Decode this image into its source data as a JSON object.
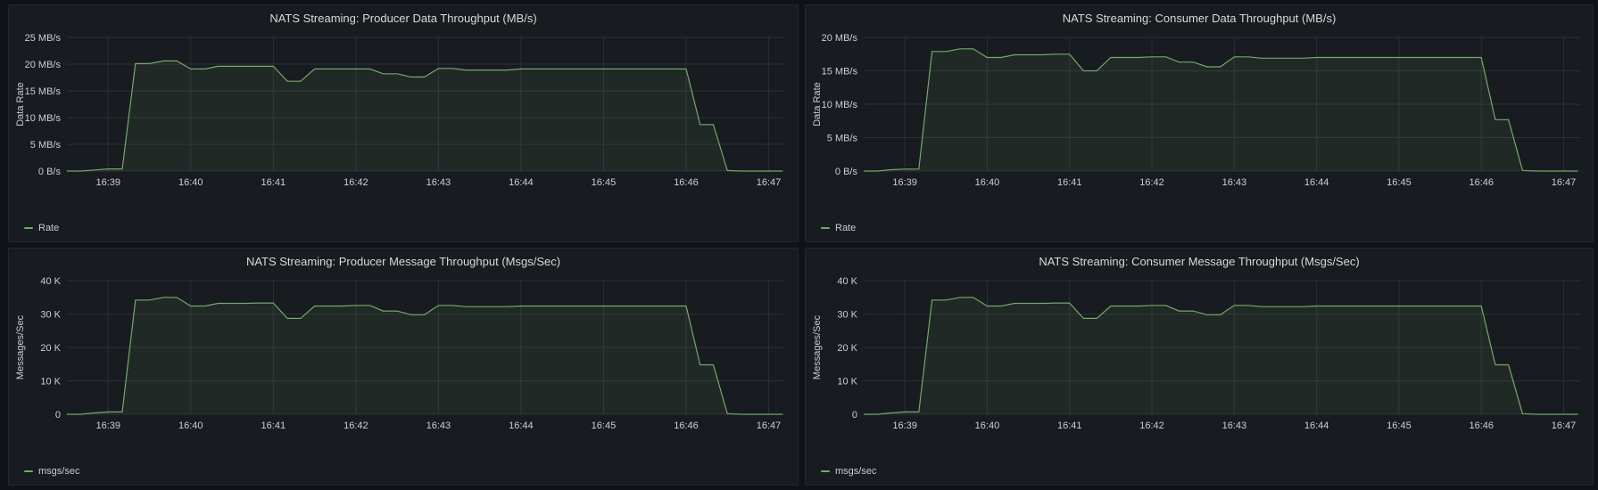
{
  "colors": {
    "series": "#73a96a",
    "grid": "#2c2f35",
    "background": "#181b1f",
    "text": "#c7d0d9"
  },
  "panels": [
    {
      "title": "NATS Streaming: Producer Data Throughput (MB/s)",
      "legend": "Rate"
    },
    {
      "title": "NATS Streaming: Consumer Data Throughput (MB/s)",
      "legend": "Rate"
    },
    {
      "title": "NATS Streaming: Producer Message Throughput (Msgs/Sec)",
      "legend": "msgs/sec"
    },
    {
      "title": "NATS Streaming: Consumer Message Throughput (Msgs/Sec)",
      "legend": "msgs/sec"
    }
  ],
  "chart_data": [
    {
      "type": "area",
      "title": "NATS Streaming: Producer Data Throughput (MB/s)",
      "ylabel": "Data Rate",
      "xlabel": "",
      "ylim": [
        0,
        25
      ],
      "x_ticks": [
        "16:39",
        "16:40",
        "16:41",
        "16:42",
        "16:43",
        "16:44",
        "16:45",
        "16:46",
        "16:47"
      ],
      "y_ticks": [
        {
          "value": 0,
          "label": "0 B/s"
        },
        {
          "value": 5,
          "label": "5 MB/s"
        },
        {
          "value": 10,
          "label": "10 MB/s"
        },
        {
          "value": 15,
          "label": "15 MB/s"
        },
        {
          "value": 20,
          "label": "20 MB/s"
        },
        {
          "value": 25,
          "label": "25 MB/s"
        }
      ],
      "grid": true,
      "legend_position": "bottom-left",
      "x_start_minute": 38.5,
      "x_end_minute": 47.2,
      "series": [
        {
          "name": "Rate",
          "x": [
            38.5,
            38.67,
            38.83,
            39.0,
            39.17,
            39.33,
            39.5,
            39.67,
            39.83,
            40.0,
            40.17,
            40.33,
            40.5,
            40.67,
            40.83,
            41.0,
            41.17,
            41.33,
            41.5,
            41.67,
            41.83,
            42.0,
            42.17,
            42.33,
            42.5,
            42.67,
            42.83,
            43.0,
            43.17,
            43.33,
            43.5,
            43.67,
            43.83,
            44.0,
            44.17,
            44.33,
            44.5,
            44.67,
            44.83,
            45.0,
            45.17,
            45.33,
            45.5,
            45.67,
            45.83,
            46.0,
            46.17,
            46.33,
            46.5,
            46.67,
            46.83,
            47.0,
            47.17
          ],
          "values": [
            0,
            0,
            0.2,
            0.4,
            0.4,
            20.1,
            20.1,
            20.6,
            20.6,
            19.1,
            19.1,
            19.6,
            19.6,
            19.6,
            19.6,
            19.6,
            16.8,
            16.8,
            19.1,
            19.1,
            19.1,
            19.1,
            19.1,
            18.2,
            18.2,
            17.6,
            17.6,
            19.2,
            19.2,
            18.9,
            18.9,
            18.9,
            18.9,
            19.1,
            19.1,
            19.1,
            19.1,
            19.1,
            19.1,
            19.1,
            19.1,
            19.1,
            19.1,
            19.1,
            19.1,
            19.1,
            8.7,
            8.7,
            0.1,
            0,
            0,
            0,
            0
          ]
        }
      ]
    },
    {
      "type": "area",
      "title": "NATS Streaming: Consumer Data Throughput (MB/s)",
      "ylabel": "Data Rate",
      "xlabel": "",
      "ylim": [
        0,
        20
      ],
      "x_ticks": [
        "16:39",
        "16:40",
        "16:41",
        "16:42",
        "16:43",
        "16:44",
        "16:45",
        "16:46",
        "16:47"
      ],
      "y_ticks": [
        {
          "value": 0,
          "label": "0 B/s"
        },
        {
          "value": 5,
          "label": "5 MB/s"
        },
        {
          "value": 10,
          "label": "10 MB/s"
        },
        {
          "value": 15,
          "label": "15 MB/s"
        },
        {
          "value": 20,
          "label": "20 MB/s"
        }
      ],
      "grid": true,
      "legend_position": "bottom-left",
      "x_start_minute": 38.5,
      "x_end_minute": 47.2,
      "series": [
        {
          "name": "Rate",
          "x": [
            38.5,
            38.67,
            38.83,
            39.0,
            39.17,
            39.33,
            39.5,
            39.67,
            39.83,
            40.0,
            40.17,
            40.33,
            40.5,
            40.67,
            40.83,
            41.0,
            41.17,
            41.33,
            41.5,
            41.67,
            41.83,
            42.0,
            42.17,
            42.33,
            42.5,
            42.67,
            42.83,
            43.0,
            43.17,
            43.33,
            43.5,
            43.67,
            43.83,
            44.0,
            44.17,
            44.33,
            44.5,
            44.67,
            44.83,
            45.0,
            45.17,
            45.33,
            45.5,
            45.67,
            45.83,
            46.0,
            46.17,
            46.33,
            46.5,
            46.67,
            46.83,
            47.0,
            47.17
          ],
          "values": [
            0,
            0,
            0.2,
            0.3,
            0.3,
            17.9,
            17.9,
            18.3,
            18.3,
            17.0,
            17.0,
            17.4,
            17.4,
            17.4,
            17.5,
            17.5,
            15.0,
            15.0,
            17.0,
            17.0,
            17.0,
            17.1,
            17.1,
            16.3,
            16.3,
            15.6,
            15.6,
            17.1,
            17.1,
            16.9,
            16.9,
            16.9,
            16.9,
            17.0,
            17.0,
            17.0,
            17.0,
            17.0,
            17.0,
            17.0,
            17.0,
            17.0,
            17.0,
            17.0,
            17.0,
            17.0,
            7.7,
            7.7,
            0.1,
            0,
            0,
            0,
            0
          ]
        }
      ]
    },
    {
      "type": "area",
      "title": "NATS Streaming: Producer Message Throughput (Msgs/Sec)",
      "ylabel": "Messages/Sec",
      "xlabel": "",
      "ylim": [
        0,
        40000
      ],
      "x_ticks": [
        "16:39",
        "16:40",
        "16:41",
        "16:42",
        "16:43",
        "16:44",
        "16:45",
        "16:46",
        "16:47"
      ],
      "y_ticks": [
        {
          "value": 0,
          "label": "0"
        },
        {
          "value": 10000,
          "label": "10 K"
        },
        {
          "value": 20000,
          "label": "20 K"
        },
        {
          "value": 30000,
          "label": "30 K"
        },
        {
          "value": 40000,
          "label": "40 K"
        }
      ],
      "grid": true,
      "legend_position": "bottom-left",
      "x_start_minute": 38.5,
      "x_end_minute": 47.2,
      "series": [
        {
          "name": "msgs/sec",
          "x": [
            38.5,
            38.67,
            38.83,
            39.0,
            39.17,
            39.33,
            39.5,
            39.67,
            39.83,
            40.0,
            40.17,
            40.33,
            40.5,
            40.67,
            40.83,
            41.0,
            41.17,
            41.33,
            41.5,
            41.67,
            41.83,
            42.0,
            42.17,
            42.33,
            42.5,
            42.67,
            42.83,
            43.0,
            43.17,
            43.33,
            43.5,
            43.67,
            43.83,
            44.0,
            44.17,
            44.33,
            44.5,
            44.67,
            44.83,
            45.0,
            45.17,
            45.33,
            45.5,
            45.67,
            45.83,
            46.0,
            46.17,
            46.33,
            46.5,
            46.67,
            46.83,
            47.0,
            47.17
          ],
          "values": [
            0,
            0,
            400,
            700,
            700,
            34200,
            34200,
            35000,
            35000,
            32400,
            32400,
            33200,
            33200,
            33200,
            33300,
            33300,
            28700,
            28700,
            32400,
            32400,
            32400,
            32600,
            32600,
            30900,
            30900,
            29800,
            29800,
            32600,
            32600,
            32200,
            32200,
            32200,
            32200,
            32400,
            32400,
            32400,
            32400,
            32400,
            32400,
            32400,
            32400,
            32400,
            32400,
            32400,
            32400,
            32400,
            14800,
            14800,
            200,
            0,
            0,
            0,
            0
          ]
        }
      ]
    },
    {
      "type": "area",
      "title": "NATS Streaming: Consumer Message Throughput (Msgs/Sec)",
      "ylabel": "Messages/Sec",
      "xlabel": "",
      "ylim": [
        0,
        40000
      ],
      "x_ticks": [
        "16:39",
        "16:40",
        "16:41",
        "16:42",
        "16:43",
        "16:44",
        "16:45",
        "16:46",
        "16:47"
      ],
      "y_ticks": [
        {
          "value": 0,
          "label": "0"
        },
        {
          "value": 10000,
          "label": "10 K"
        },
        {
          "value": 20000,
          "label": "20 K"
        },
        {
          "value": 30000,
          "label": "30 K"
        },
        {
          "value": 40000,
          "label": "40 K"
        }
      ],
      "grid": true,
      "legend_position": "bottom-left",
      "x_start_minute": 38.5,
      "x_end_minute": 47.2,
      "series": [
        {
          "name": "msgs/sec",
          "x": [
            38.5,
            38.67,
            38.83,
            39.0,
            39.17,
            39.33,
            39.5,
            39.67,
            39.83,
            40.0,
            40.17,
            40.33,
            40.5,
            40.67,
            40.83,
            41.0,
            41.17,
            41.33,
            41.5,
            41.67,
            41.83,
            42.0,
            42.17,
            42.33,
            42.5,
            42.67,
            42.83,
            43.0,
            43.17,
            43.33,
            43.5,
            43.67,
            43.83,
            44.0,
            44.17,
            44.33,
            44.5,
            44.67,
            44.83,
            45.0,
            45.17,
            45.33,
            45.5,
            45.67,
            45.83,
            46.0,
            46.17,
            46.33,
            46.5,
            46.67,
            46.83,
            47.0,
            47.17
          ],
          "values": [
            0,
            0,
            400,
            700,
            700,
            34200,
            34200,
            35000,
            35000,
            32400,
            32400,
            33200,
            33200,
            33200,
            33300,
            33300,
            28700,
            28700,
            32400,
            32400,
            32400,
            32600,
            32600,
            30900,
            30900,
            29800,
            29800,
            32600,
            32600,
            32200,
            32200,
            32200,
            32200,
            32400,
            32400,
            32400,
            32400,
            32400,
            32400,
            32400,
            32400,
            32400,
            32400,
            32400,
            32400,
            32400,
            14800,
            14800,
            200,
            0,
            0,
            0,
            0
          ]
        }
      ]
    }
  ]
}
